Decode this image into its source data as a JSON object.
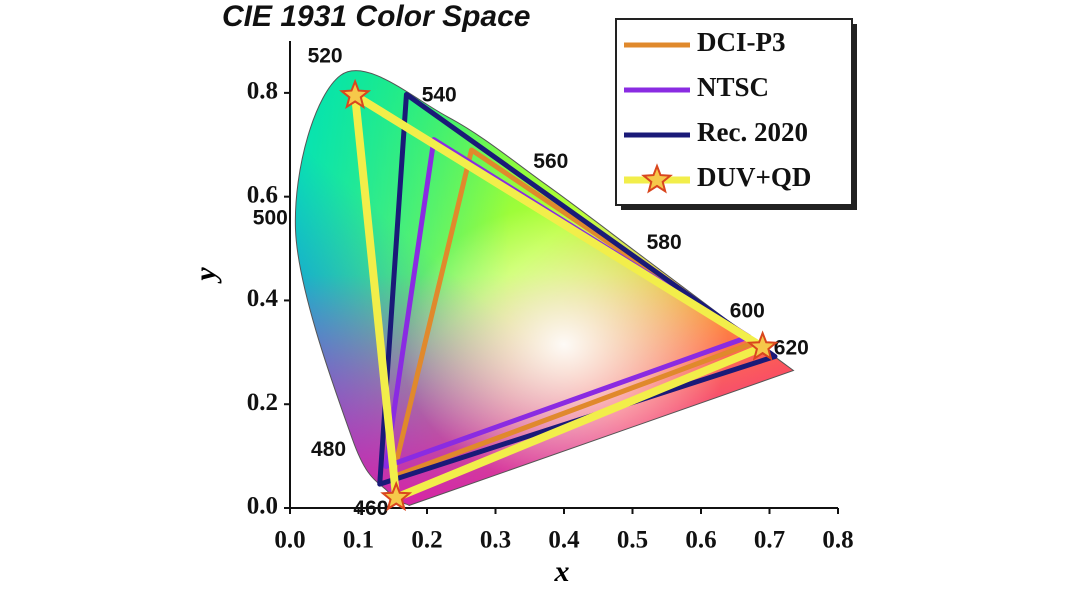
{
  "chart_data": {
    "type": "gamut",
    "title": "CIE 1931 Color Space",
    "x_label": "x",
    "y_label": "y",
    "xlim": [
      0,
      0.8
    ],
    "ylim": [
      0,
      0.9
    ],
    "xticks": [
      {
        "value": 0,
        "label": "0.0"
      },
      {
        "value": 0.1,
        "label": "0.1"
      },
      {
        "value": 0.2,
        "label": "0.2"
      },
      {
        "value": 0.3,
        "label": "0.3"
      },
      {
        "value": 0.4,
        "label": "0.4"
      },
      {
        "value": 0.5,
        "label": "0.5"
      },
      {
        "value": 0.6,
        "label": "0.6"
      },
      {
        "value": 0.7,
        "label": "0.7"
      },
      {
        "value": 0.8,
        "label": "0.8"
      }
    ],
    "yticks": [
      {
        "value": 0,
        "label": "0.0"
      },
      {
        "value": 0.2,
        "label": "0.2"
      },
      {
        "value": 0.4,
        "label": "0.4"
      },
      {
        "value": 0.6,
        "label": "0.6"
      },
      {
        "value": 0.8,
        "label": "0.8"
      }
    ],
    "spectral_locus": {
      "labels": [
        null,
        460,
        480,
        500,
        520,
        540,
        560,
        580,
        600,
        620,
        null
      ],
      "x": [
        0.174,
        0.144,
        0.091,
        0.008,
        0.074,
        0.23,
        0.373,
        0.512,
        0.627,
        0.691,
        0.735
      ],
      "y": [
        0.005,
        0.03,
        0.133,
        0.538,
        0.834,
        0.754,
        0.624,
        0.487,
        0.373,
        0.308,
        0.265
      ]
    },
    "legend": "upper right",
    "series": [
      {
        "name": "DCI-P3",
        "color": "#e0892c",
        "x": [
          0.68,
          0.265,
          0.15
        ],
        "y": [
          0.32,
          0.69,
          0.06
        ]
      },
      {
        "name": "NTSC",
        "color": "#8a2be2",
        "x": [
          0.67,
          0.21,
          0.14
        ],
        "y": [
          0.33,
          0.71,
          0.08
        ]
      },
      {
        "name": "Rec. 2020",
        "color": "#1a1a78",
        "x": [
          0.708,
          0.17,
          0.131
        ],
        "y": [
          0.292,
          0.797,
          0.046
        ]
      },
      {
        "name": "DUV+QD",
        "color": "#f2ee4a",
        "marker": "star",
        "x": [
          0.69,
          0.095,
          0.155
        ],
        "y": [
          0.31,
          0.795,
          0.02
        ]
      }
    ]
  }
}
